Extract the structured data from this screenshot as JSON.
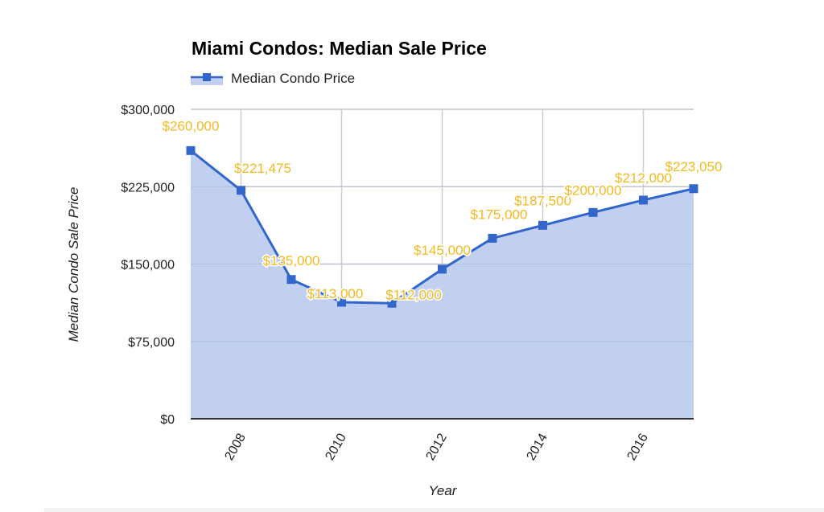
{
  "chart_data": {
    "type": "area",
    "title": "Miami Condos: Median Sale Price",
    "xlabel": "Year",
    "ylabel": "Median Condo Sale Price",
    "x": [
      2007,
      2008,
      2009,
      2010,
      2011,
      2012,
      2013,
      2014,
      2015,
      2016,
      2017
    ],
    "series": [
      {
        "name": "Median Condo Price",
        "values": [
          260000,
          221475,
          135000,
          113000,
          112000,
          145000,
          175000,
          187500,
          200000,
          212000,
          223050
        ],
        "labels": [
          "$260,000",
          "$221,475",
          "$135,000",
          "$113,000",
          "$112,000",
          "$145,000",
          "$175,000",
          "$187,500",
          "$200,000",
          "$212,000",
          "$223,050"
        ],
        "color": "#3366cc",
        "fill_color": "#c1d0f0",
        "label_color": "#f1ba1e"
      }
    ],
    "xlim": [
      2007,
      2017
    ],
    "ylim": [
      0,
      300000
    ],
    "x_ticks": [
      2008,
      2010,
      2012,
      2014,
      2016
    ],
    "x_tick_labels": [
      "2008",
      "2010",
      "2012",
      "2014",
      "2016"
    ],
    "y_ticks": [
      0,
      75000,
      150000,
      225000,
      300000
    ],
    "y_tick_labels": [
      "$0",
      "$75,000",
      "$150,000",
      "$225,000",
      "$300,000"
    ],
    "grid": true,
    "legend": "top-left"
  }
}
